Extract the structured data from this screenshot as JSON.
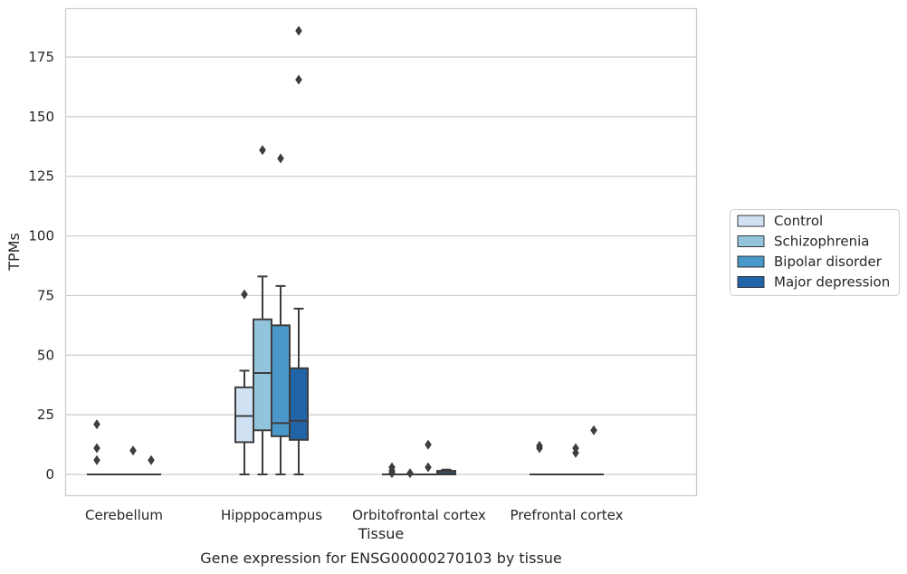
{
  "chart_data": {
    "type": "box",
    "title": "",
    "caption": "Gene expression for ENSG00000270103 by tissue",
    "xlabel": "Tissue",
    "ylabel": "TPMs",
    "ylim": [
      -9,
      195
    ],
    "yticks": [
      0,
      25,
      50,
      75,
      100,
      125,
      150,
      175
    ],
    "grid": "horizontal",
    "legend_position": "right",
    "categories": [
      "Cerebellum",
      "Hipppocampus",
      "Orbitofrontal cortex",
      "Prefrontal cortex"
    ],
    "series": [
      {
        "name": "Control",
        "color": "#cfe1f2",
        "boxes": [
          {
            "min": 0,
            "q1": 0,
            "median": 0,
            "q3": 0,
            "max": 0,
            "outliers": [
              21,
              11,
              6
            ]
          },
          {
            "min": 0,
            "q1": 13.5,
            "median": 24.5,
            "q3": 36.5,
            "max": 43.5,
            "outliers": [
              75.5
            ]
          },
          {
            "min": 0,
            "q1": 0,
            "median": 0,
            "q3": 0,
            "max": 0,
            "outliers": [
              3,
              1.5,
              0.5
            ]
          },
          {
            "min": 0,
            "q1": 0,
            "median": 0,
            "q3": 0,
            "max": 0,
            "outliers": [
              12,
              11
            ]
          }
        ]
      },
      {
        "name": "Schizophrenia",
        "color": "#93c4de",
        "boxes": [
          {
            "min": 0,
            "q1": 0,
            "median": 0,
            "q3": 0,
            "max": 0,
            "outliers": []
          },
          {
            "min": 0,
            "q1": 18.5,
            "median": 42.5,
            "q3": 65,
            "max": 83,
            "outliers": [
              136
            ]
          },
          {
            "min": 0,
            "q1": 0,
            "median": 0,
            "q3": 0,
            "max": 0,
            "outliers": [
              0.5
            ]
          },
          {
            "min": 0,
            "q1": 0,
            "median": 0,
            "q3": 0,
            "max": 0,
            "outliers": []
          }
        ]
      },
      {
        "name": "Bipolar disorder",
        "color": "#4a98c9",
        "boxes": [
          {
            "min": 0,
            "q1": 0,
            "median": 0,
            "q3": 0,
            "max": 0,
            "outliers": [
              10
            ]
          },
          {
            "min": 0,
            "q1": 16,
            "median": 21.5,
            "q3": 62.5,
            "max": 79,
            "outliers": [
              132.5
            ]
          },
          {
            "min": 0,
            "q1": 0,
            "median": 0,
            "q3": 0,
            "max": 0,
            "outliers": [
              12.5,
              3
            ]
          },
          {
            "min": 0,
            "q1": 0,
            "median": 0,
            "q3": 0,
            "max": 0,
            "outliers": [
              11,
              9
            ]
          }
        ]
      },
      {
        "name": "Major depression",
        "color": "#2264a8",
        "boxes": [
          {
            "min": 0,
            "q1": 0,
            "median": 0,
            "q3": 0,
            "max": 0,
            "outliers": [
              6
            ]
          },
          {
            "min": 0,
            "q1": 14.5,
            "median": 22.5,
            "q3": 44.5,
            "max": 69.5,
            "outliers": [
              186,
              165.5
            ]
          },
          {
            "min": 0,
            "q1": 0,
            "median": 0.5,
            "q3": 1.5,
            "max": 2,
            "outliers": []
          },
          {
            "min": 0,
            "q1": 0,
            "median": 0,
            "q3": 0,
            "max": 0,
            "outliers": [
              18.5
            ]
          }
        ]
      }
    ]
  }
}
